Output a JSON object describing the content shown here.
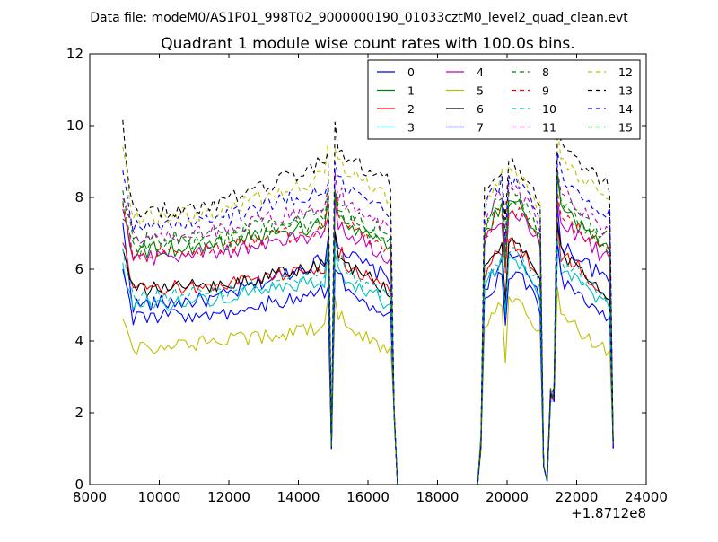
{
  "header": {
    "supertitle": "Data file: modeM0/AS1P01_998T02_9000000190_01033cztM0_level2_quad_clean.evt"
  },
  "chart_data": {
    "type": "line",
    "title": "Quadrant 1 module wise count rates with 100.0s bins.",
    "xlabel": "",
    "ylabel": "",
    "x_offset_label": "+1.8712e8",
    "xlim": [
      8000,
      24000
    ],
    "ylim": [
      0,
      12
    ],
    "x_ticks": [
      8000,
      10000,
      12000,
      14000,
      16000,
      18000,
      20000,
      22000,
      24000
    ],
    "x_tick_labels": [
      "8000",
      "10000",
      "12000",
      "14000",
      "16000",
      "18000",
      "20000",
      "22000",
      "24000"
    ],
    "y_ticks": [
      0,
      2,
      4,
      6,
      8,
      10,
      12
    ],
    "y_tick_labels": [
      "0",
      "2",
      "4",
      "6",
      "8",
      "10",
      "12"
    ],
    "grid": false,
    "legend_position": "top-right",
    "legend_columns": 4,
    "bin_width": 100,
    "segments": [
      {
        "start": 8950,
        "end": 14850,
        "shape": "orbit1"
      },
      {
        "start": 14850,
        "end": 15250,
        "shape": "dip1"
      },
      {
        "start": 15250,
        "end": 16650,
        "shape": "orbit2"
      },
      {
        "start": 16650,
        "end": 16750,
        "shape": "fall"
      },
      {
        "start": 16750,
        "end": 19150,
        "shape": "zero"
      },
      {
        "start": 19150,
        "end": 19250,
        "shape": "rise"
      },
      {
        "start": 19250,
        "end": 20950,
        "shape": "orbit3"
      },
      {
        "start": 20950,
        "end": 21350,
        "shape": "dip2"
      },
      {
        "start": 21350,
        "end": 22950,
        "shape": "orbit4"
      },
      {
        "start": 22950,
        "end": 23050,
        "shape": "end"
      }
    ],
    "series": [
      {
        "name": "0",
        "color": "#0000ff",
        "dashed": false,
        "base": 5.0,
        "start": 7.2,
        "peak": 6.3
      },
      {
        "name": "1",
        "color": "#008000",
        "dashed": false,
        "base": 6.5,
        "start": 7.6,
        "peak": 7.2
      },
      {
        "name": "2",
        "color": "#ff0000",
        "dashed": false,
        "base": 5.4,
        "start": 6.8,
        "peak": 6.0
      },
      {
        "name": "3",
        "color": "#00bfbf",
        "dashed": false,
        "base": 5.0,
        "start": 6.1,
        "peak": 5.6
      },
      {
        "name": "4",
        "color": "#bf00bf",
        "dashed": false,
        "base": 6.3,
        "start": 7.9,
        "peak": 6.9
      },
      {
        "name": "5",
        "color": "#bfbf00",
        "dashed": false,
        "base": 3.8,
        "start": 4.7,
        "peak": 4.3
      },
      {
        "name": "6",
        "color": "#000000",
        "dashed": false,
        "base": 5.4,
        "start": 6.5,
        "peak": 6.0
      },
      {
        "name": "7",
        "color": "#0000ff",
        "dashed": false,
        "base": 4.6,
        "start": 5.8,
        "peak": 5.3
      },
      {
        "name": "8",
        "color": "#008000",
        "dashed": true,
        "base": 6.8,
        "start": 8.3,
        "peak": 7.5
      },
      {
        "name": "9",
        "color": "#ff0000",
        "dashed": true,
        "base": 6.4,
        "start": 7.8,
        "peak": 7.1
      },
      {
        "name": "10",
        "color": "#00bfbf",
        "dashed": true,
        "base": 5.2,
        "start": 6.4,
        "peak": 5.8
      },
      {
        "name": "11",
        "color": "#bf00bf",
        "dashed": true,
        "base": 6.9,
        "start": 8.1,
        "peak": 7.7
      },
      {
        "name": "12",
        "color": "#bfbf00",
        "dashed": true,
        "base": 7.4,
        "start": 9.4,
        "peak": 8.6
      },
      {
        "name": "13",
        "color": "#000000",
        "dashed": true,
        "base": 7.6,
        "start": 10.0,
        "peak": 9.0
      },
      {
        "name": "14",
        "color": "#0000ff",
        "dashed": true,
        "base": 7.2,
        "start": 8.9,
        "peak": 8.2
      },
      {
        "name": "15",
        "color": "#008000",
        "dashed": true,
        "base": 6.6,
        "start": 7.9,
        "peak": 7.3
      }
    ]
  }
}
